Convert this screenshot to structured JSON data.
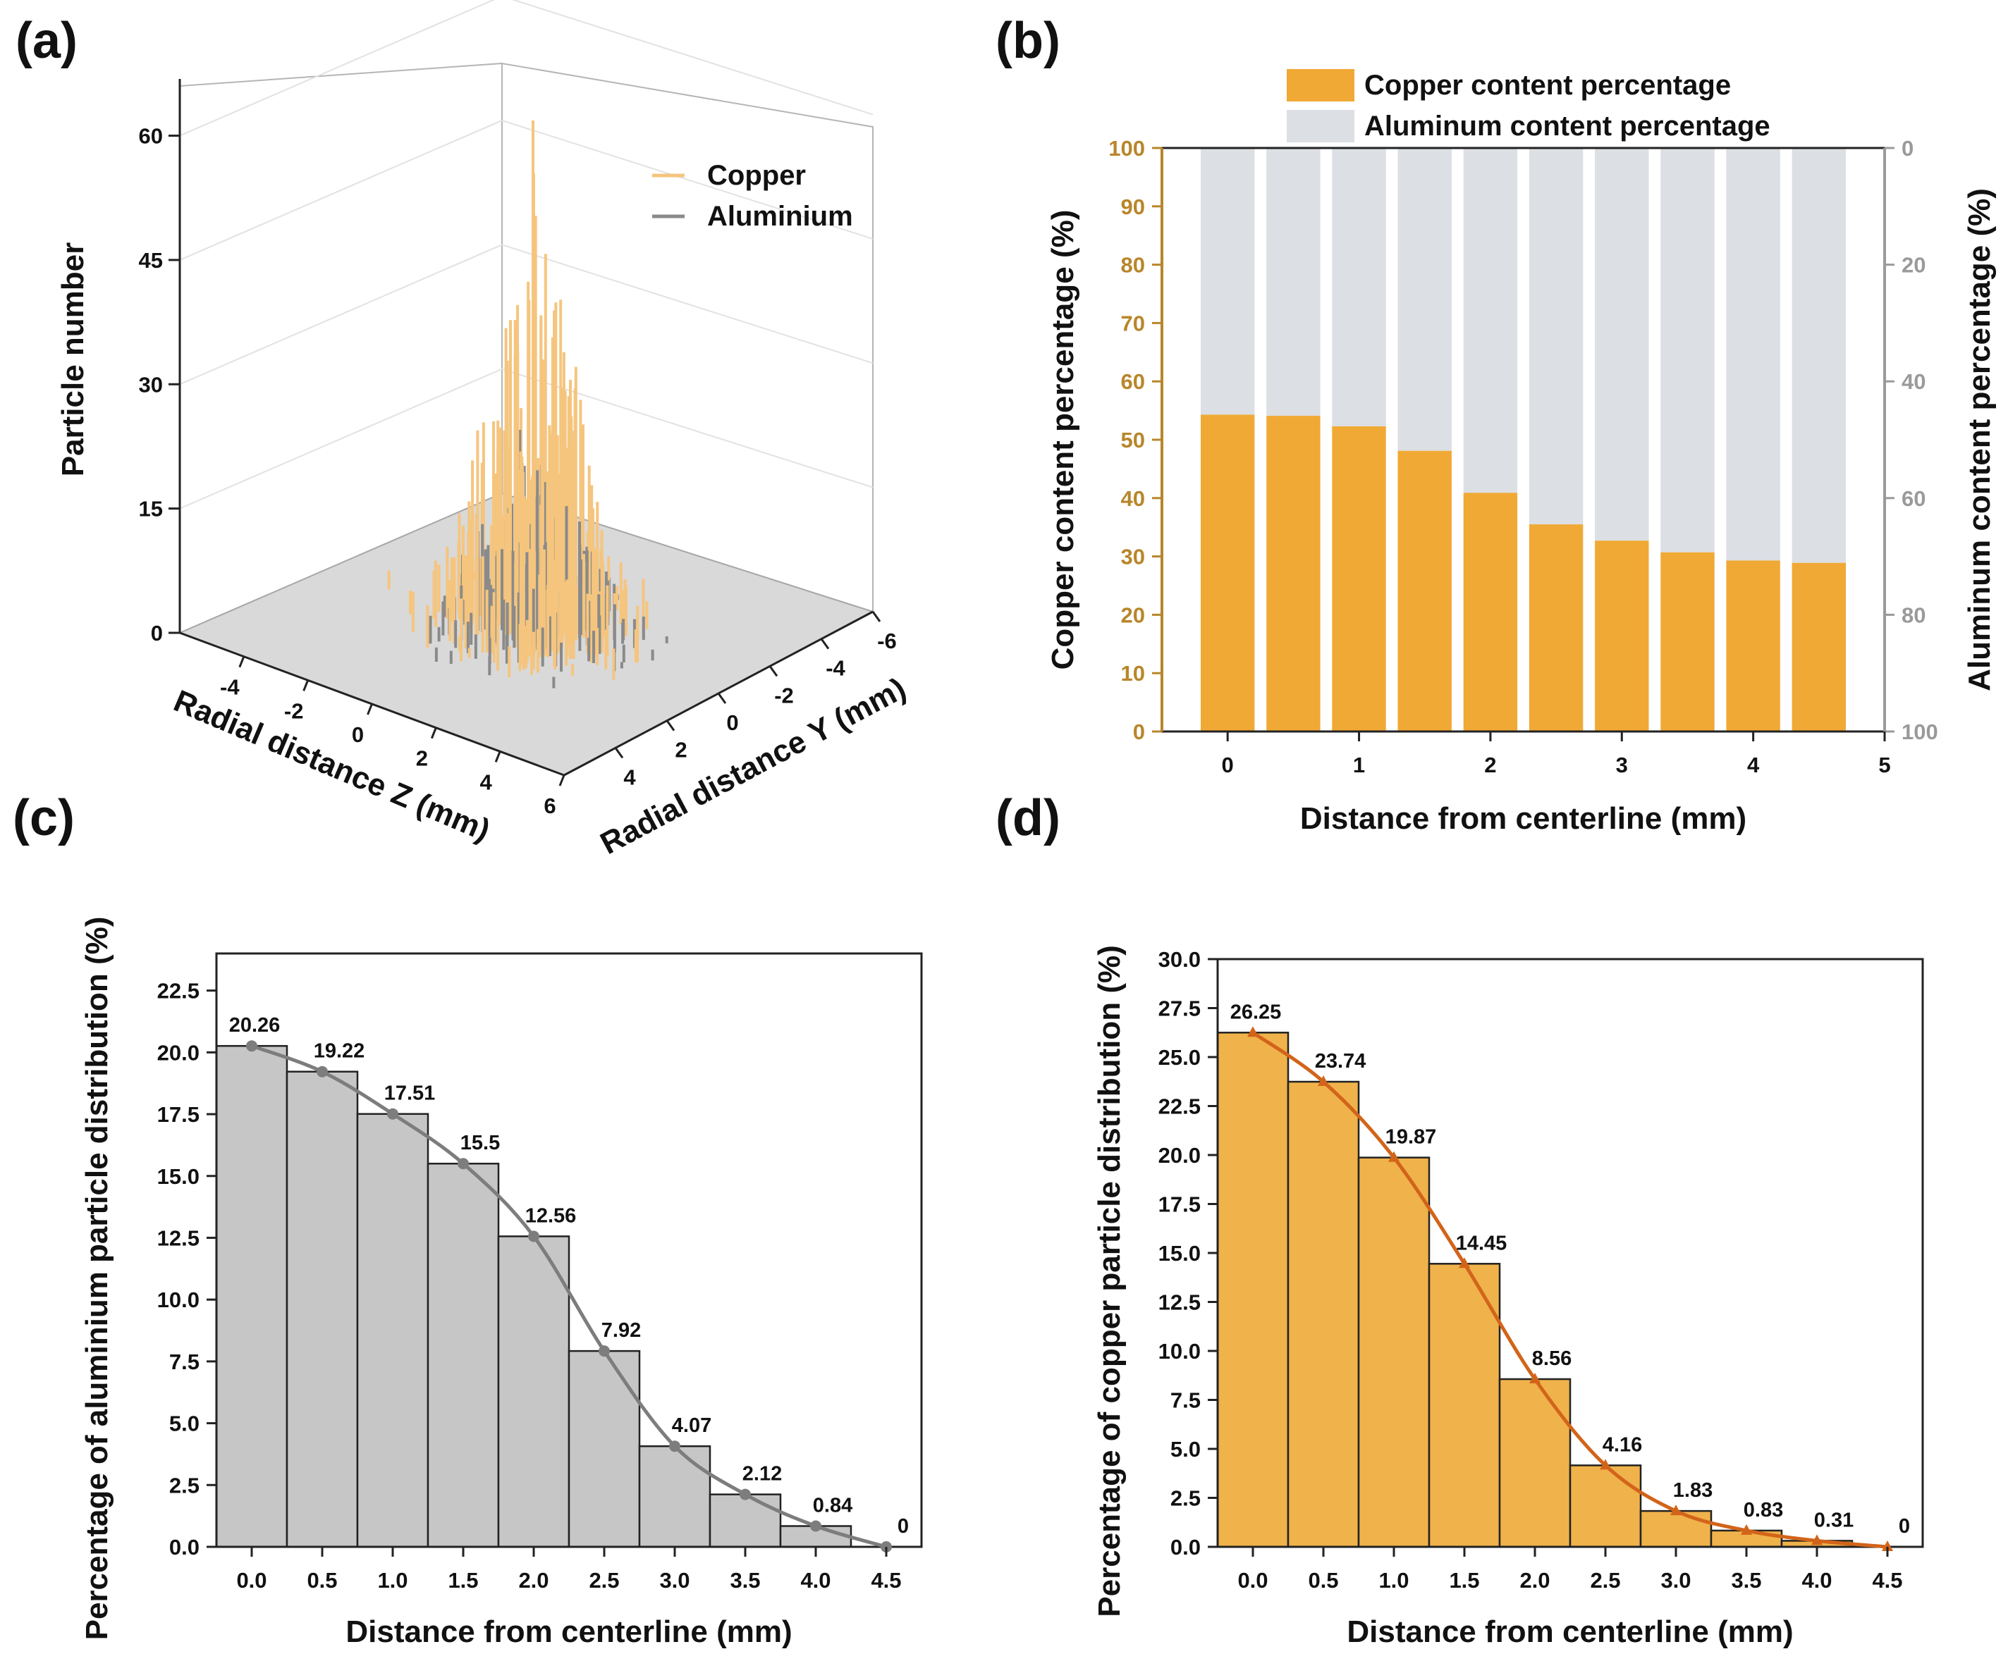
{
  "chart_data": [
    {
      "panel": "(a)",
      "type": "bar3d",
      "zlabel": "Particle number",
      "xlabel": "Radial distance Z (mm)",
      "ylabel": "Radial distance Y (mm)",
      "z_ticks": [
        "0",
        "15",
        "30",
        "45",
        "60"
      ],
      "x_ticks": [
        "-4",
        "-2",
        "0",
        "2",
        "4",
        "6"
      ],
      "y_ticks": [
        "4",
        "2",
        "0",
        "-2",
        "-4",
        "-6"
      ],
      "zlim": [
        0,
        66
      ],
      "series": [
        {
          "name": "Copper",
          "color": "#f5c57e"
        },
        {
          "name": "Aluminium",
          "color": "#8a8a8a"
        }
      ]
    },
    {
      "panel": "(b)",
      "type": "bar",
      "stacked": true,
      "xlabel": "Distance from centerline (mm)",
      "ylabel": "Copper content percentage (%)",
      "y2label": "Aluminum content percentage (%)",
      "x_ticks": [
        "0",
        "1",
        "2",
        "3",
        "4",
        "5"
      ],
      "y_ticks": [
        "0",
        "10",
        "20",
        "30",
        "40",
        "50",
        "60",
        "70",
        "80",
        "90",
        "100"
      ],
      "y2_ticks": [
        "0",
        "20",
        "40",
        "60",
        "80",
        "100"
      ],
      "ylim": [
        0,
        100
      ],
      "xlim": [
        -0.5,
        5
      ],
      "categories": [
        0,
        0.5,
        1,
        1.5,
        2,
        2.5,
        3,
        3.5,
        4,
        4.5
      ],
      "series": [
        {
          "name": "Copper content percentage",
          "color": "#f0a935",
          "values": [
            54.3,
            54.1,
            52.3,
            48.1,
            40.9,
            35.5,
            32.7,
            30.7,
            29.3,
            28.9
          ]
        },
        {
          "name": "Aluminum content percentage",
          "color": "#dcdfe3",
          "values": [
            45.7,
            45.9,
            47.7,
            51.9,
            59.1,
            64.5,
            67.3,
            69.3,
            70.7,
            71.1
          ]
        }
      ]
    },
    {
      "panel": "(c)",
      "type": "bar",
      "xlabel": "Distance from centerline (mm)",
      "ylabel": "Percentage of aluminium particle distribution (%)",
      "x_ticks": [
        "0.0",
        "0.5",
        "1.0",
        "1.5",
        "2.0",
        "2.5",
        "3.0",
        "3.5",
        "4.0",
        "4.5"
      ],
      "y_ticks": [
        "0.0",
        "2.5",
        "5.0",
        "7.5",
        "10.0",
        "12.5",
        "15.0",
        "17.5",
        "20.0",
        "22.5"
      ],
      "ylim": [
        0,
        24
      ],
      "xlim": [
        -0.25,
        4.75
      ],
      "categories": [
        0.0,
        0.5,
        1.0,
        1.5,
        2.0,
        2.5,
        3.0,
        3.5,
        4.0,
        4.5
      ],
      "values": [
        20.26,
        19.22,
        17.51,
        15.5,
        12.56,
        7.92,
        4.07,
        2.12,
        0.84,
        0
      ],
      "labels": [
        "20.26",
        "19.22",
        "17.51",
        "15.5",
        "12.56",
        "7.92",
        "4.07",
        "2.12",
        "0.84",
        "0"
      ],
      "bar_color": "#c6c6c6",
      "curve_color": "#7d7d7d"
    },
    {
      "panel": "(d)",
      "type": "bar",
      "xlabel": "Distance from centerline (mm)",
      "ylabel": "Percentage of copper particle distribution (%)",
      "x_ticks": [
        "0.0",
        "0.5",
        "1.0",
        "1.5",
        "2.0",
        "2.5",
        "3.0",
        "3.5",
        "4.0",
        "4.5"
      ],
      "y_ticks": [
        "0.0",
        "2.5",
        "5.0",
        "7.5",
        "10.0",
        "12.5",
        "15.0",
        "17.5",
        "20.0",
        "22.5",
        "25.0",
        "27.5",
        "30.0"
      ],
      "ylim": [
        0,
        30
      ],
      "xlim": [
        -0.25,
        4.75
      ],
      "categories": [
        0.0,
        0.5,
        1.0,
        1.5,
        2.0,
        2.5,
        3.0,
        3.5,
        4.0,
        4.5
      ],
      "values": [
        26.25,
        23.74,
        19.87,
        14.45,
        8.56,
        4.16,
        1.83,
        0.83,
        0.31,
        0
      ],
      "labels": [
        "26.25",
        "23.74",
        "19.87",
        "14.45",
        "8.56",
        "4.16",
        "1.83",
        "0.83",
        "0.31",
        "0"
      ],
      "bar_color": "#f0b24a",
      "curve_color": "#d2641a"
    }
  ]
}
